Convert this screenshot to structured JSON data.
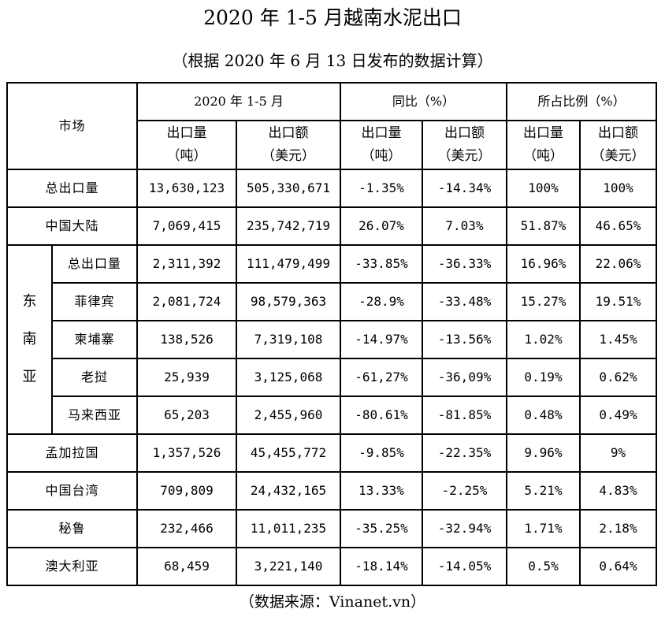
{
  "title": "2020 年 1-5 月越南水泥出口",
  "subtitle": "（根据 2020 年 6 月 13 日发布的数据计算）",
  "header": {
    "market": "市场",
    "group_period": "2020 年 1-5 月",
    "group_yoy": "同比（%）",
    "group_share": "所占比例（%）",
    "vol_line1": "出口量",
    "vol_line2": "（吨）",
    "val_line1": "出口额",
    "val_line2": "（美元）"
  },
  "rows": {
    "total": {
      "market": "总出口量",
      "cells": [
        "13,630,123",
        "505,330,671",
        "-1.35%",
        "-14.34%",
        "100%",
        "100%"
      ]
    },
    "mainland": {
      "market": "中国大陆",
      "cells": [
        "7,069,415",
        "235,742,719",
        "26.07%",
        "7.03%",
        "51.87%",
        "46.65%"
      ]
    },
    "sea_label": [
      "东",
      "南",
      "亚"
    ],
    "sea": [
      {
        "market": "总出口量",
        "cells": [
          "2,311,392",
          "111,479,499",
          "-33.85%",
          "-36.33%",
          "16.96%",
          "22.06%"
        ]
      },
      {
        "market": "菲律宾",
        "cells": [
          "2,081,724",
          "98,579,363",
          "-28.9%",
          "-33.48%",
          "15.27%",
          "19.51%"
        ]
      },
      {
        "market": "柬埔寨",
        "cells": [
          "138,526",
          "7,319,108",
          "-14.97%",
          "-13.56%",
          "1.02%",
          "1.45%"
        ]
      },
      {
        "market": "老挝",
        "cells": [
          "25,939",
          "3,125,068",
          "-61,27%",
          "-36,09%",
          "0.19%",
          "0.62%"
        ]
      },
      {
        "market": "马来西亚",
        "cells": [
          "65,203",
          "2,455,960",
          "-80.61%",
          "-81.85%",
          "0.48%",
          "0.49%"
        ]
      }
    ],
    "others": [
      {
        "market": "孟加拉国",
        "cells": [
          "1,357,526",
          "45,455,772",
          "-9.85%",
          "-22.35%",
          "9.96%",
          "9%"
        ]
      },
      {
        "market": "中国台湾",
        "cells": [
          "709,809",
          "24,432,165",
          "13.33%",
          "-2.25%",
          "5.21%",
          "4.83%"
        ]
      },
      {
        "market": "秘鲁",
        "cells": [
          "232,466",
          "11,011,235",
          "-35.25%",
          "-32.94%",
          "1.71%",
          "2.18%"
        ]
      },
      {
        "market": "澳大利亚",
        "cells": [
          "68,459",
          "3,221,140",
          "-18.14%",
          "-14.05%",
          "0.5%",
          "0.64%"
        ]
      }
    ]
  },
  "source": "（数据来源：Vinanet.vn）"
}
